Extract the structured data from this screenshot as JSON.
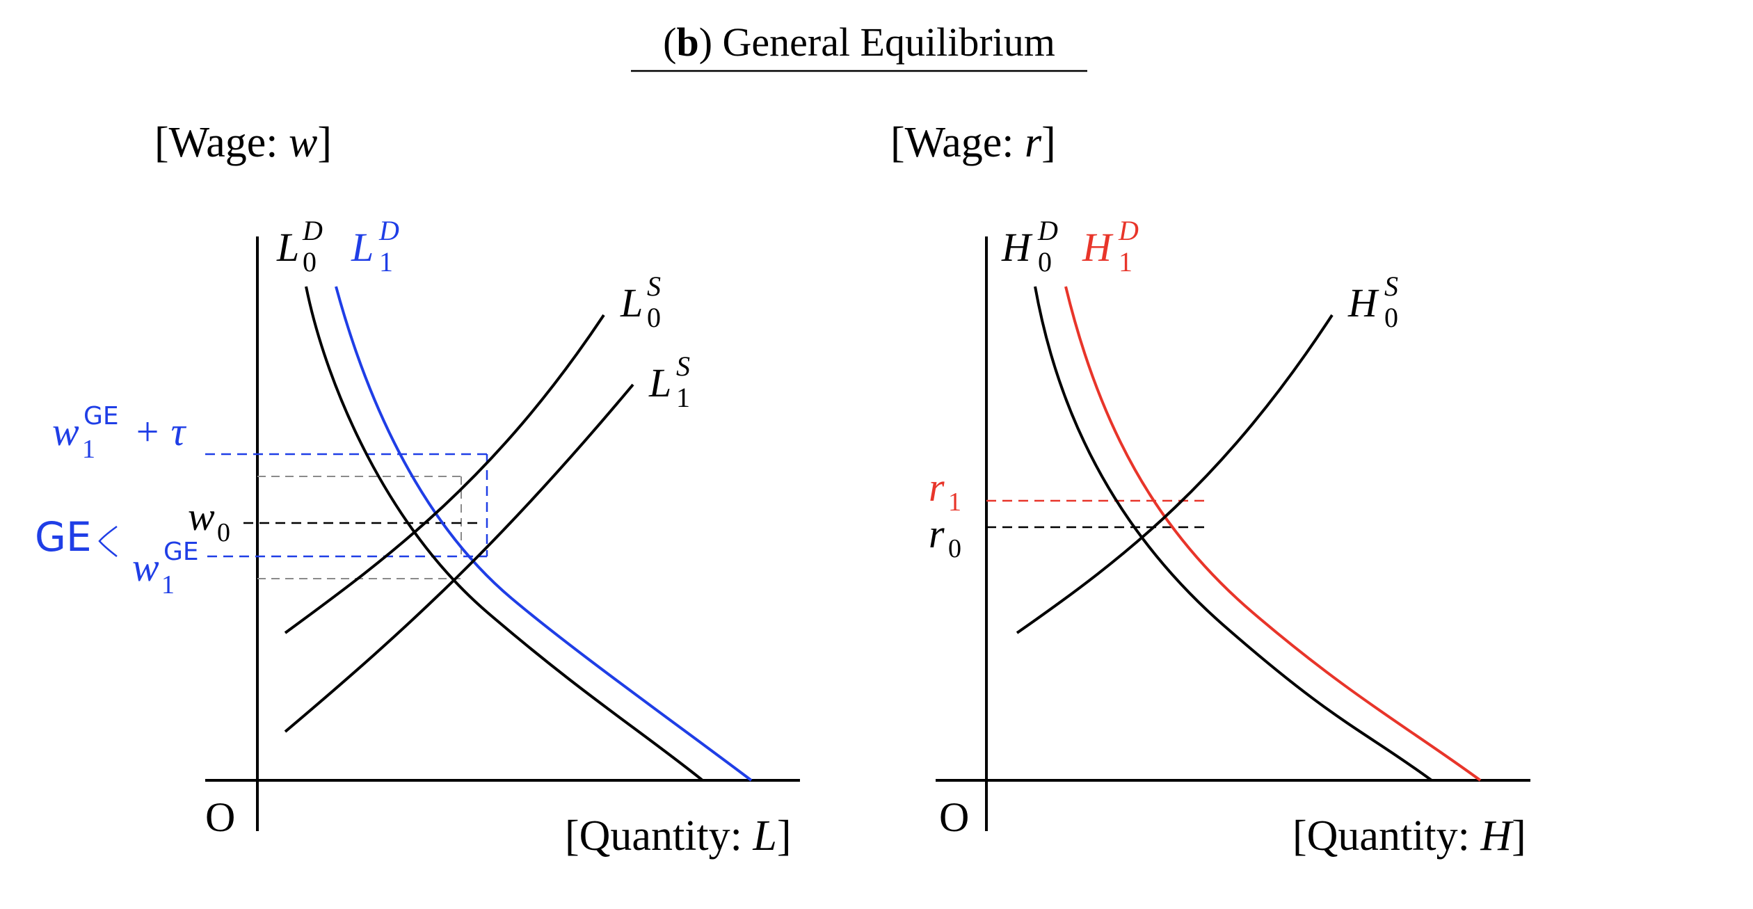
{
  "title": {
    "prefix": "(",
    "bold": "b",
    "rest": ") General Equilibrium"
  },
  "colors": {
    "black": "#000000",
    "blue": "#1f3ee6",
    "red": "#e8352a",
    "guide_gray": "#8a8a8a"
  },
  "panels": [
    {
      "id": "labor",
      "y_axis_label": {
        "text": "[Wage: ",
        "var": "w",
        "close": "]"
      },
      "x_axis_label": {
        "text": "[Quantity: ",
        "var": "L",
        "close": "]"
      },
      "origin": "O",
      "curves": [
        {
          "id": "L0D",
          "base": "L",
          "sup": "D",
          "sub": "0",
          "color": "#000000"
        },
        {
          "id": "L1D",
          "base": "L",
          "sup": "D",
          "sub": "1",
          "color": "#1f3ee6"
        },
        {
          "id": "L0S",
          "base": "L",
          "sup": "S",
          "sub": "0",
          "color": "#000000"
        },
        {
          "id": "L1S",
          "base": "L",
          "sup": "S",
          "sub": "1",
          "color": "#000000"
        }
      ],
      "y_labels": [
        {
          "id": "w1GE_tau",
          "base": "w",
          "sup": "GE",
          "sub": "1",
          "suffix": " + τ",
          "color": "#1f3ee6"
        },
        {
          "id": "w0",
          "base": "w",
          "sub": "0",
          "color": "#000000"
        },
        {
          "id": "w1GE",
          "base": "w",
          "sup": "GE",
          "sub": "1",
          "color": "#1f3ee6"
        }
      ],
      "bracket_label": {
        "text": "GE",
        "color": "#1f3ee6"
      }
    },
    {
      "id": "human-capital",
      "y_axis_label": {
        "text": "[Wage: ",
        "var": "r",
        "close": "]"
      },
      "x_axis_label": {
        "text": "[Quantity: ",
        "var": "H",
        "close": "]"
      },
      "origin": "O",
      "curves": [
        {
          "id": "H0D",
          "base": "H",
          "sup": "D",
          "sub": "0",
          "color": "#000000"
        },
        {
          "id": "H1D",
          "base": "H",
          "sup": "D",
          "sub": "1",
          "color": "#e8352a"
        },
        {
          "id": "H0S",
          "base": "H",
          "sup": "S",
          "sub": "0",
          "color": "#000000"
        }
      ],
      "y_labels": [
        {
          "id": "r1",
          "base": "r",
          "sub": "1",
          "color": "#e8352a"
        },
        {
          "id": "r0",
          "base": "r",
          "sub": "0",
          "color": "#000000"
        }
      ]
    }
  ]
}
